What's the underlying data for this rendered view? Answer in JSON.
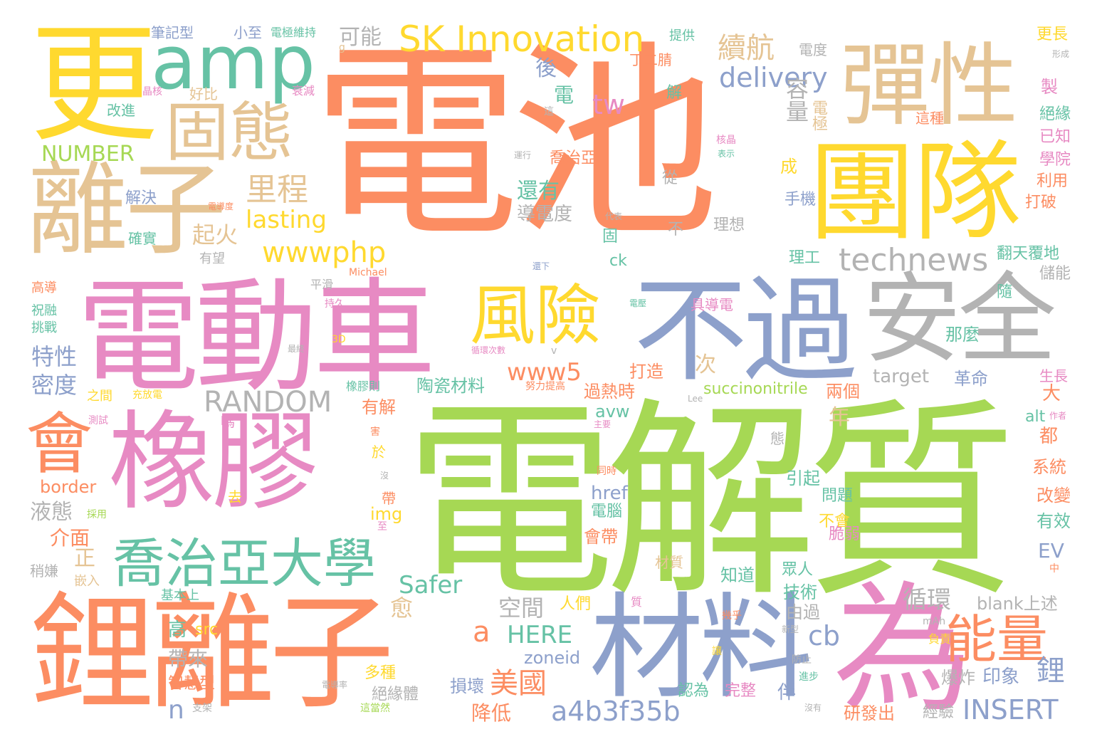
{
  "palette": {
    "orange": "#fc8d62",
    "green": "#a6d854",
    "pink": "#e78ac3",
    "blue": "#8da0cb",
    "yellow": "#ffd92f",
    "tan": "#e5c494",
    "gray": "#b3b3b3",
    "teal": "#66c2a5"
  },
  "words": [
    {
      "text": "電池",
      "color": "#fc8d62"
    },
    {
      "text": "電解質",
      "color": "#a6d854"
    },
    {
      "text": "電動車",
      "color": "#e78ac3"
    },
    {
      "text": "橡膠",
      "color": "#e78ac3"
    },
    {
      "text": "鋰離子",
      "color": "#fc8d62"
    },
    {
      "text": "團隊",
      "color": "#ffd92f"
    },
    {
      "text": "安全",
      "color": "#b3b3b3"
    },
    {
      "text": "不過",
      "color": "#8da0cb"
    },
    {
      "text": "材料",
      "color": "#8da0cb"
    },
    {
      "text": "為",
      "color": "#e78ac3"
    },
    {
      "text": "更",
      "color": "#ffd92f"
    },
    {
      "text": "離子",
      "color": "#e5c494"
    },
    {
      "text": "彈性",
      "color": "#e5c494"
    },
    {
      "text": "amp",
      "color": "#66c2a5"
    },
    {
      "text": "固態",
      "color": "#e5c494"
    },
    {
      "text": "會",
      "color": "#fc8d62"
    },
    {
      "text": "風險",
      "color": "#ffd92f"
    },
    {
      "text": "喬治亞大學",
      "color": "#66c2a5"
    },
    {
      "text": "SK Innovation",
      "color": "#ffd92f"
    },
    {
      "text": "能量",
      "color": "#fc8d62"
    },
    {
      "text": "續航",
      "color": "#e5c494"
    },
    {
      "text": "delivery",
      "color": "#8da0cb"
    },
    {
      "text": "technews",
      "color": "#b3b3b3"
    },
    {
      "text": "wwwphp",
      "color": "#ffd92f"
    },
    {
      "text": "www5",
      "color": "#fc8d62"
    },
    {
      "text": "RANDOM",
      "color": "#b3b3b3"
    },
    {
      "text": "a4b3f35b",
      "color": "#8da0cb"
    },
    {
      "text": "INSERT",
      "color": "#8da0cb"
    },
    {
      "text": "里程",
      "color": "#e5c494"
    },
    {
      "text": "lasting",
      "color": "#ffd92f"
    },
    {
      "text": "NUMBER",
      "color": "#a6d854"
    },
    {
      "text": "起火",
      "color": "#e5c494"
    },
    {
      "text": "tw",
      "color": "#e78ac3"
    },
    {
      "text": "可能",
      "color": "#b3b3b3"
    },
    {
      "text": "美國",
      "color": "#fc8d62"
    },
    {
      "text": "循環",
      "color": "#b3b3b3"
    },
    {
      "text": "空間",
      "color": "#b3b3b3"
    },
    {
      "text": "Safer",
      "color": "#66c2a5"
    },
    {
      "text": "HERE",
      "color": "#66c2a5"
    },
    {
      "text": "cb",
      "color": "#8da0cb"
    },
    {
      "text": "a",
      "color": "#fc8d62"
    },
    {
      "text": "n",
      "color": "#8da0cb"
    },
    {
      "text": "特性",
      "color": "#8da0cb"
    },
    {
      "text": "密度",
      "color": "#8da0cb"
    },
    {
      "text": "液態",
      "color": "#b3b3b3"
    },
    {
      "text": "介面",
      "color": "#fc8d62"
    },
    {
      "text": "還有",
      "color": "#66c2a5"
    },
    {
      "text": "導電度",
      "color": "#b3b3b3"
    },
    {
      "text": "容量",
      "color": "#b3b3b3"
    },
    {
      "text": "電極",
      "color": "#e5c494"
    },
    {
      "text": "陶瓷材料",
      "color": "#66c2a5"
    },
    {
      "text": "succinonitrile",
      "color": "#a6d854"
    },
    {
      "text": "target",
      "color": "#b3b3b3"
    },
    {
      "text": "avw",
      "color": "#66c2a5"
    },
    {
      "text": "href",
      "color": "#8da0cb"
    },
    {
      "text": "img",
      "color": "#ffd92f"
    },
    {
      "text": "EV",
      "color": "#8da0cb"
    },
    {
      "text": "border",
      "color": "#fc8d62"
    },
    {
      "text": "blank上述",
      "color": "#b3b3b3"
    },
    {
      "text": "zoneid",
      "color": "#8da0cb"
    },
    {
      "text": "src",
      "color": "#ffd92f"
    },
    {
      "text": "降低",
      "color": "#fc8d62"
    },
    {
      "text": "高",
      "color": "#66c2a5"
    },
    {
      "text": "帶來",
      "color": "#b3b3b3"
    },
    {
      "text": "智慧型",
      "color": "#fc8d62"
    },
    {
      "text": "研發出",
      "color": "#fc8d62"
    },
    {
      "text": "印象",
      "color": "#8da0cb"
    },
    {
      "text": "鋰",
      "color": "#8da0cb"
    },
    {
      "text": "年",
      "color": "#e5c494"
    },
    {
      "text": "次",
      "color": "#e5c494"
    },
    {
      "text": "後",
      "color": "#8da0cb"
    },
    {
      "text": "電",
      "color": "#66c2a5"
    },
    {
      "text": "正",
      "color": "#e5c494"
    },
    {
      "text": "愈",
      "color": "#e5c494"
    },
    {
      "text": "多種",
      "color": "#ffd92f"
    },
    {
      "text": "絕緣體",
      "color": "#b3b3b3"
    },
    {
      "text": "損壞",
      "color": "#8da0cb"
    },
    {
      "text": "有解",
      "color": "#fc8d62"
    },
    {
      "text": "過熱時",
      "color": "#fc8d62"
    },
    {
      "text": "打造",
      "color": "#fc8d62"
    },
    {
      "text": "兩個",
      "color": "#fc8d62"
    },
    {
      "text": "革命",
      "color": "#8da0cb"
    },
    {
      "text": "那麼",
      "color": "#66c2a5"
    },
    {
      "text": "系統",
      "color": "#fc8d62"
    },
    {
      "text": "改變",
      "color": "#fc8d62"
    },
    {
      "text": "有效",
      "color": "#66c2a5"
    },
    {
      "text": "都",
      "color": "#fc8d62"
    },
    {
      "text": "大",
      "color": "#fc8d62"
    },
    {
      "text": "alt",
      "color": "#66c2a5"
    },
    {
      "text": "引起",
      "color": "#66c2a5"
    },
    {
      "text": "問題",
      "color": "#66c2a5"
    },
    {
      "text": "不會",
      "color": "#ffd92f"
    },
    {
      "text": "脆弱",
      "color": "#e78ac3"
    },
    {
      "text": "技術",
      "color": "#66c2a5"
    },
    {
      "text": "由過",
      "color": "#b3b3b3"
    },
    {
      "text": "知道",
      "color": "#66c2a5"
    },
    {
      "text": "眾人",
      "color": "#66c2a5"
    },
    {
      "text": "會帶",
      "color": "#fc8d62"
    },
    {
      "text": "電腦",
      "color": "#66c2a5"
    },
    {
      "text": "材質",
      "color": "#e5c494"
    },
    {
      "text": "人們",
      "color": "#ffd92f"
    },
    {
      "text": "完整",
      "color": "#e78ac3"
    },
    {
      "text": "認為",
      "color": "#66c2a5"
    },
    {
      "text": "伴",
      "color": "#8da0cb"
    },
    {
      "text": "爆炸",
      "color": "#b3b3b3"
    },
    {
      "text": "經驗",
      "color": "#b3b3b3"
    },
    {
      "text": "翻天覆地",
      "color": "#66c2a5"
    },
    {
      "text": "儲能",
      "color": "#b3b3b3"
    },
    {
      "text": "隨",
      "color": "#66c2a5"
    },
    {
      "text": "生長",
      "color": "#e78ac3"
    },
    {
      "text": "學院",
      "color": "#e78ac3"
    },
    {
      "text": "利用",
      "color": "#fc8d62"
    },
    {
      "text": "打破",
      "color": "#fc8d62"
    },
    {
      "text": "已知",
      "color": "#e78ac3"
    },
    {
      "text": "絕緣",
      "color": "#66c2a5"
    },
    {
      "text": "更長",
      "color": "#ffd92f"
    },
    {
      "text": "製",
      "color": "#e78ac3"
    },
    {
      "text": "這種",
      "color": "#fc8d62"
    },
    {
      "text": "電度",
      "color": "#b3b3b3"
    },
    {
      "text": "理工",
      "color": "#66c2a5"
    },
    {
      "text": "理想",
      "color": "#b3b3b3"
    },
    {
      "text": "具導電",
      "color": "#e78ac3"
    },
    {
      "text": "手機",
      "color": "#8da0cb"
    },
    {
      "text": "成",
      "color": "#ffd92f"
    },
    {
      "text": "從",
      "color": "#b3b3b3"
    },
    {
      "text": "喬治亞",
      "color": "#fc8d62"
    },
    {
      "text": "解",
      "color": "#66c2a5"
    },
    {
      "text": "固",
      "color": "#66c2a5"
    },
    {
      "text": "不",
      "color": "#b3b3b3"
    },
    {
      "text": "ck",
      "color": "#66c2a5"
    },
    {
      "text": "筆記型",
      "color": "#8da0cb"
    },
    {
      "text": "小至",
      "color": "#8da0cb"
    },
    {
      "text": "電極維持",
      "color": "#66c2a5"
    },
    {
      "text": "提供",
      "color": "#66c2a5"
    },
    {
      "text": "丁二腈",
      "color": "#fc8d62"
    },
    {
      "text": "改進",
      "color": "#66c2a5"
    },
    {
      "text": "好比",
      "color": "#e5c494"
    },
    {
      "text": "衰減",
      "color": "#e78ac3"
    },
    {
      "text": "晶核",
      "color": "#e78ac3"
    },
    {
      "text": "解決",
      "color": "#8da0cb"
    },
    {
      "text": "確實",
      "color": "#66c2a5"
    },
    {
      "text": "有望",
      "color": "#b3b3b3"
    },
    {
      "text": "高導",
      "color": "#fc8d62"
    },
    {
      "text": "祝融",
      "color": "#66c2a5"
    },
    {
      "text": "挑戰",
      "color": "#66c2a5"
    },
    {
      "text": "平滑",
      "color": "#b3b3b3"
    },
    {
      "text": "持久",
      "color": "#e78ac3"
    },
    {
      "text": "之間",
      "color": "#ffd92f"
    },
    {
      "text": "充放電",
      "color": "#ffd92f"
    },
    {
      "text": "測試",
      "color": "#e78ac3"
    },
    {
      "text": "嗎",
      "color": "#e78ac3"
    },
    {
      "text": "採用",
      "color": "#a6d854"
    },
    {
      "text": "稍嫌",
      "color": "#b3b3b3"
    },
    {
      "text": "嵌入",
      "color": "#e5c494"
    },
    {
      "text": "基本上",
      "color": "#66c2a5"
    },
    {
      "text": "支架",
      "color": "#b3b3b3"
    },
    {
      "text": "去",
      "color": "#ffd92f"
    },
    {
      "text": "帶",
      "color": "#fc8d62"
    },
    {
      "text": "於",
      "color": "#ffd92f"
    },
    {
      "text": "態",
      "color": "#b3b3b3"
    },
    {
      "text": "Michael",
      "color": "#fc8d62"
    },
    {
      "text": "Lee",
      "color": "#b3b3b3"
    },
    {
      "text": "3D",
      "color": "#ffd92f"
    },
    {
      "text": "v",
      "color": "#b3b3b3"
    },
    {
      "text": "g",
      "color": "#e5c494"
    },
    {
      "text": "mAh",
      "color": "#b3b3b3"
    },
    {
      "text": "負責",
      "color": "#ffd92f"
    },
    {
      "text": "防止",
      "color": "#b3b3b3"
    },
    {
      "text": "進步",
      "color": "#66c2a5"
    },
    {
      "text": "沒有",
      "color": "#b3b3b3"
    },
    {
      "text": "中",
      "color": "#fc8d62"
    },
    {
      "text": "作者",
      "color": "#e78ac3"
    },
    {
      "text": "形成",
      "color": "#b3b3b3"
    },
    {
      "text": "表示",
      "color": "#66c2a5"
    },
    {
      "text": "核晶",
      "color": "#e78ac3"
    },
    {
      "text": "代表",
      "color": "#b3b3b3"
    },
    {
      "text": "運行",
      "color": "#b3b3b3"
    },
    {
      "text": "還下",
      "color": "#8da0cb"
    },
    {
      "text": "循環次數",
      "color": "#e78ac3"
    },
    {
      "text": "努力提高",
      "color": "#fc8d62"
    },
    {
      "text": "橡膠則",
      "color": "#66c2a5"
    },
    {
      "text": "電壓",
      "color": "#66c2a5"
    },
    {
      "text": "同時",
      "color": "#fc8d62"
    },
    {
      "text": "主要",
      "color": "#e78ac3"
    },
    {
      "text": "質",
      "color": "#e78ac3"
    },
    {
      "text": "幾乎",
      "color": "#fc8d62"
    },
    {
      "text": "電導率",
      "color": "#b3b3b3"
    },
    {
      "text": "這當然",
      "color": "#a6d854"
    },
    {
      "text": "新型",
      "color": "#b3b3b3"
    },
    {
      "text": "讓",
      "color": "#ffd92f"
    },
    {
      "text": "電導度",
      "color": "#fc8d62"
    },
    {
      "text": "這",
      "color": "#b3b3b3"
    },
    {
      "text": "最終",
      "color": "#b3b3b3"
    },
    {
      "text": "至",
      "color": "#e78ac3"
    },
    {
      "text": "沒",
      "color": "#b3b3b3"
    },
    {
      "text": "害",
      "color": "#fc8d62"
    }
  ]
}
